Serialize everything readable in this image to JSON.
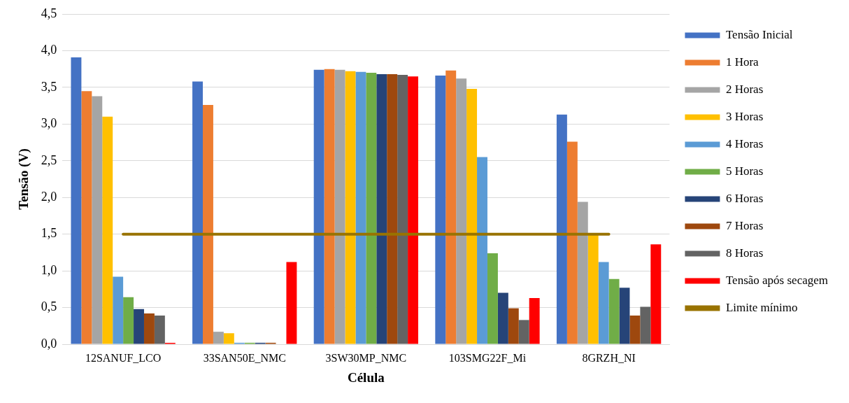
{
  "chart_data": {
    "type": "bar",
    "xlabel": "Célula",
    "ylabel": "Tensão (V)",
    "categories": [
      "12SANUF_LCO",
      "33SAN50E_NMC",
      "3SW30MP_NMC",
      "103SMG22F_Mi",
      "8GRZH_NI"
    ],
    "series": [
      {
        "name": "Tensão Inicial",
        "color": "#4472c4",
        "values": [
          3.91,
          3.58,
          3.74,
          3.66,
          3.13
        ]
      },
      {
        "name": "1 Hora",
        "color": "#ed7d31",
        "values": [
          3.45,
          3.26,
          3.75,
          3.73,
          2.76
        ]
      },
      {
        "name": "2 Horas",
        "color": "#a5a5a5",
        "values": [
          3.38,
          0.17,
          3.74,
          3.62,
          1.94
        ]
      },
      {
        "name": "3 Horas",
        "color": "#ffc000",
        "values": [
          3.1,
          0.15,
          3.72,
          3.48,
          1.5
        ]
      },
      {
        "name": "4 Horas",
        "color": "#5b9bd5",
        "values": [
          0.92,
          0.02,
          3.71,
          2.55,
          1.12
        ]
      },
      {
        "name": "5 Horas",
        "color": "#70ad47",
        "values": [
          0.64,
          0.02,
          3.7,
          1.24,
          0.89
        ]
      },
      {
        "name": "6 Horas",
        "color": "#264478",
        "values": [
          0.48,
          0.02,
          3.68,
          0.7,
          0.77
        ]
      },
      {
        "name": "7 Horas",
        "color": "#9e480e",
        "values": [
          0.42,
          0.02,
          3.68,
          0.49,
          0.39
        ]
      },
      {
        "name": "8 Horas",
        "color": "#636363",
        "values": [
          0.39,
          0,
          3.67,
          0.33,
          0.51
        ]
      },
      {
        "name": "Tensão após secagem",
        "color": "#ff0000",
        "values": [
          0.02,
          1.12,
          3.65,
          0.63,
          1.36
        ]
      },
      {
        "name": "Limite mínimo",
        "type": "line",
        "color": "#997300",
        "values": [
          1.5,
          1.5,
          1.5,
          1.5,
          1.5
        ]
      }
    ],
    "ylim": [
      0,
      4.5
    ],
    "yticks": [
      {
        "value": 0,
        "label": "0,0"
      },
      {
        "value": 0.5,
        "label": "0,5"
      },
      {
        "value": 1,
        "label": "1,0"
      },
      {
        "value": 1.5,
        "label": "1,5"
      },
      {
        "value": 2,
        "label": "2,0"
      },
      {
        "value": 2.5,
        "label": "2,5"
      },
      {
        "value": 3,
        "label": "3,0"
      },
      {
        "value": 3.5,
        "label": "3,5"
      },
      {
        "value": 4,
        "label": "4,0"
      },
      {
        "value": 4.5,
        "label": "4,5"
      }
    ],
    "grid": "y",
    "legend": "right",
    "marker": "none"
  }
}
